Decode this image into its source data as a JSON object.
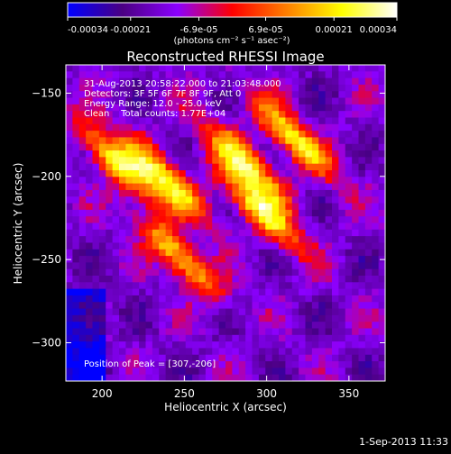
{
  "chart_data": {
    "type": "heatmap",
    "title": "Reconstructed RHESSI Image",
    "xlabel": "Heliocentric X (arcsec)",
    "ylabel": "Heliocentric Y (arcsec)",
    "xlim": [
      178,
      372
    ],
    "ylim": [
      -323,
      -133
    ],
    "x_ticks": [
      200,
      250,
      300,
      350
    ],
    "y_ticks": [
      -150,
      -200,
      -250,
      -300
    ],
    "x_tick_labels": [
      "200",
      "250",
      "300",
      "350"
    ],
    "y_tick_labels": [
      "-150",
      "-200",
      "-250",
      "-300"
    ],
    "colorbar": {
      "range": [
        -0.00034,
        0.00034
      ],
      "ticks": [
        -0.00034,
        -0.00021,
        -6.9e-05,
        6.9e-05,
        0.00021,
        0.00034
      ],
      "tick_labels": [
        "-0.00034",
        "-0.00021",
        "-6.9e-05",
        "6.9e-05",
        "0.00021",
        "0.00034"
      ],
      "units": "(photons cm⁻² s⁻¹ asec⁻²)",
      "colormap": [
        "#0000ff",
        "#4b0082",
        "#8b00ff",
        "#ff0000",
        "#ff8000",
        "#ffff00",
        "#ffffff"
      ]
    },
    "peak": [
      307,
      -206
    ],
    "annotations": [
      "31-Aug-2013 20:58:22.000 to 21:03:48.000",
      "Detectors: 3F 5F 6F 7F 8F 9F, Att 0",
      "Energy Range: 12.0 - 25.0 keV",
      "Clean    Total counts: 1.77E+04"
    ],
    "peak_label": "Position of Peak = [307,-206]",
    "timestamp": "1-Sep-2013 11:33"
  }
}
